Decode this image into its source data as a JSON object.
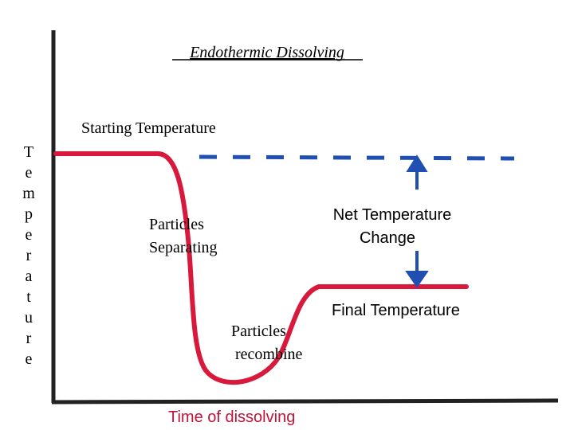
{
  "title": "Endothermic Dissolving",
  "y_axis_label": "Temperature",
  "x_axis_label": "Time of dissolving",
  "annotations": {
    "starting": "Starting Temperature",
    "separating": [
      "Particles",
      "Separating"
    ],
    "net_change": [
      "Net Temperature",
      "Change"
    ],
    "final": "Final Temperature",
    "recombine": [
      "Particles",
      "recombine"
    ]
  }
}
